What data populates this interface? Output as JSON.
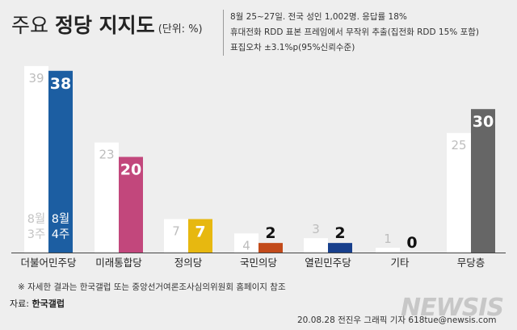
{
  "header": {
    "title_part1": "주요",
    "title_part2": "정당 지지도",
    "unit": "(단위: %)"
  },
  "info_lines": [
    "8월 25~27일. 전국 성인 1,002명. 응답률 18%",
    "휴대전화 RDD 표본 프레임에서 무작위 추출(집전화 RDD 15% 포함)",
    "표집오차 ±3.1%p(95%신뢰수준)"
  ],
  "legend_labels": {
    "prev": [
      "8월",
      "3주"
    ],
    "curr": [
      "8월",
      "4주"
    ]
  },
  "chart_data": {
    "type": "bar",
    "categories": [
      "더불어민주당",
      "미래통합당",
      "정의당",
      "국민의당",
      "열린민주당",
      "기타",
      "무당층"
    ],
    "series": [
      {
        "name": "8월 3주",
        "values": [
          39,
          23,
          7,
          4,
          3,
          1,
          25
        ]
      },
      {
        "name": "8월 4주",
        "values": [
          38,
          20,
          7,
          2,
          2,
          0,
          30
        ]
      }
    ],
    "ylim": [
      0,
      41
    ],
    "colors": {
      "previous": "#ffffff",
      "current": [
        "#1c5ea2",
        "#c2477c",
        "#e7b810",
        "#c24a1a",
        "#173f8c",
        "#9a9a9a",
        "#666666"
      ]
    }
  },
  "footer": {
    "note": "※ 자세한 결과는 한국갤럽 또는 중앙선거여론조사심의위원회 홈페이지 참조",
    "source_label": "자료:",
    "source_value": "한국갤럽",
    "credit": "20.08.28 전진우 그래픽 기자 618tue@newsis.com",
    "watermark": "NEWSIS"
  }
}
